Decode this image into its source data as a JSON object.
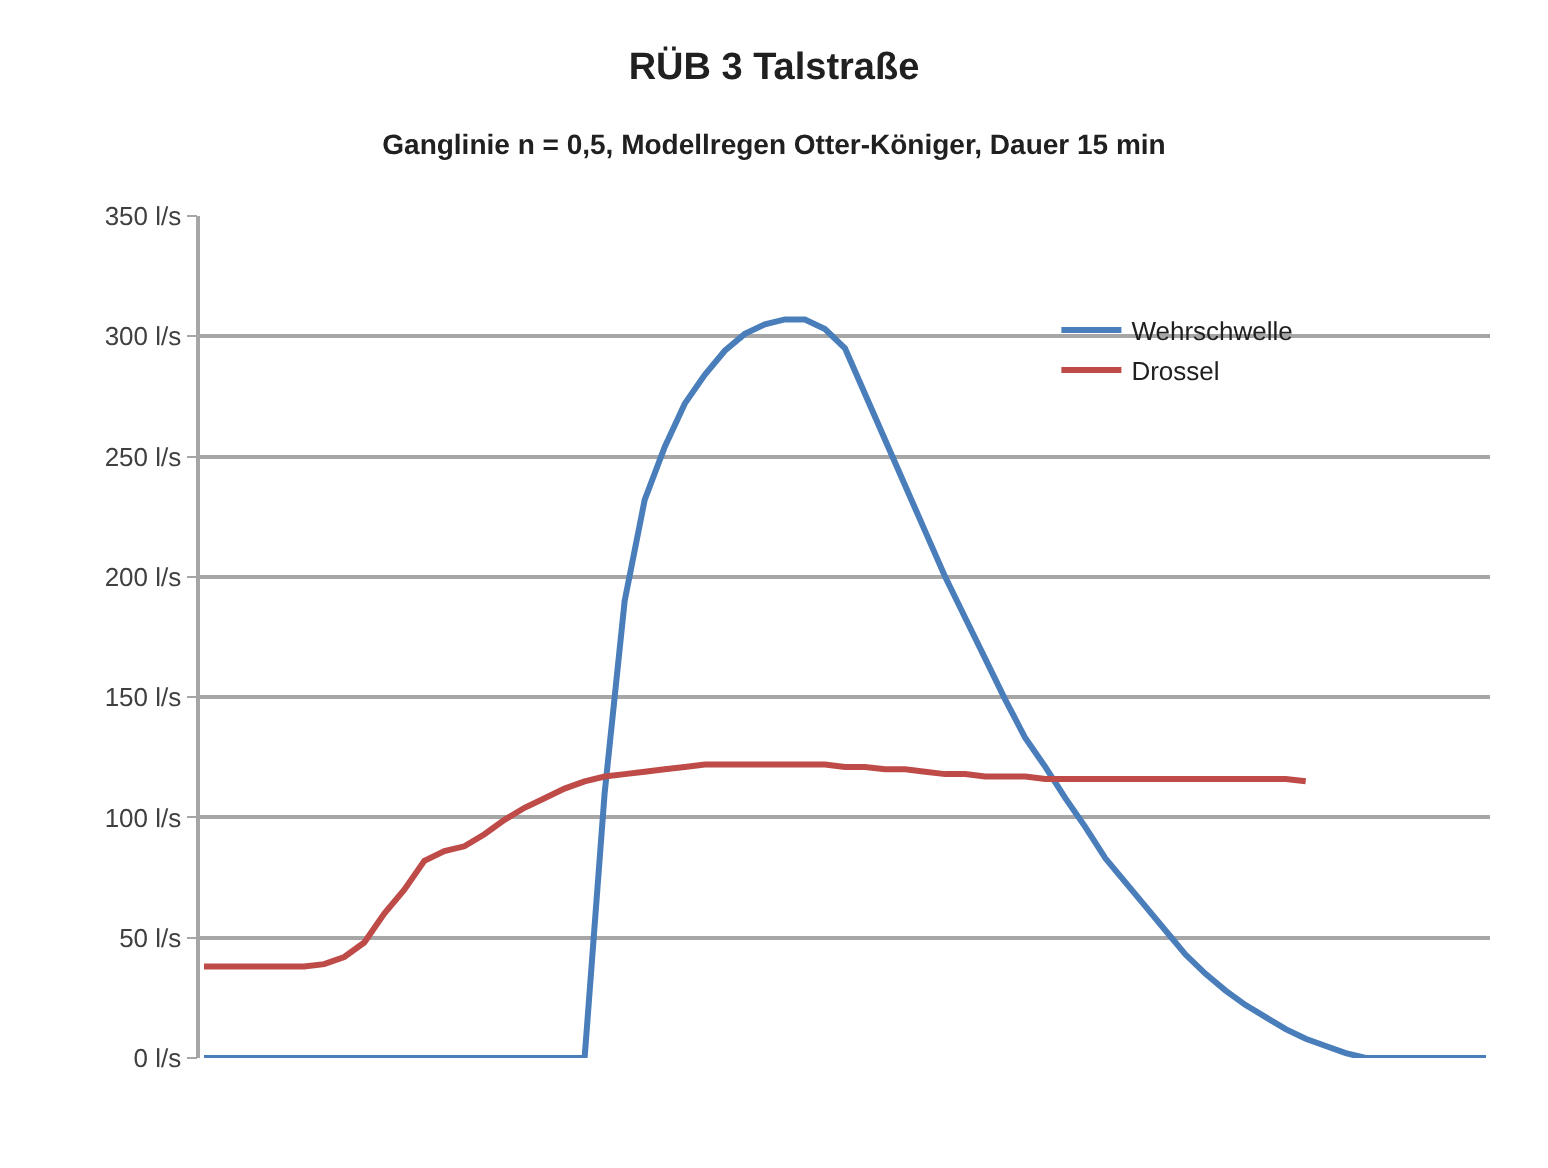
{
  "chart_data": {
    "type": "line",
    "title": "RÜB 3 Talstraße",
    "subtitle": "Ganglinie n = 0,5, Modellregen Otter-Königer, Dauer 15 min",
    "categories": [
      null,
      null,
      null,
      null,
      null,
      null,
      null,
      null,
      null,
      null,
      null,
      null,
      null,
      null,
      null,
      null,
      null,
      null,
      null,
      null,
      null,
      null,
      null,
      null,
      null,
      null,
      null,
      null,
      null,
      null,
      null,
      null,
      null,
      null,
      null,
      null,
      null,
      null,
      null,
      null,
      null,
      null,
      null,
      null,
      null,
      null,
      null,
      null,
      null,
      null,
      null,
      null,
      null,
      null,
      null,
      null,
      null,
      null,
      null,
      null,
      null,
      null,
      null,
      null,
      null
    ],
    "series": [
      {
        "name": "Wehrschwelle",
        "color": "#4a7ebb",
        "values": [
          0,
          0,
          0,
          0,
          0,
          0,
          0,
          0,
          0,
          0,
          0,
          0,
          0,
          0,
          0,
          0,
          0,
          0,
          0,
          0,
          110,
          190,
          232,
          254,
          272,
          284,
          294,
          301,
          305,
          307,
          307,
          303,
          295,
          276,
          257,
          238,
          219,
          200,
          183,
          166,
          149,
          133,
          121,
          108,
          96,
          83,
          73,
          63,
          53,
          43,
          35,
          28,
          22,
          17,
          12,
          8,
          5,
          2,
          0,
          0,
          0,
          0,
          0,
          0,
          0
        ]
      },
      {
        "name": "Drossel",
        "color": "#be4b48",
        "values": [
          38,
          38,
          38,
          38,
          38,
          38,
          39,
          42,
          48,
          60,
          70,
          82,
          86,
          88,
          93,
          99,
          104,
          108,
          112,
          115,
          117,
          118,
          119,
          120,
          121,
          122,
          122,
          122,
          122,
          122,
          122,
          122,
          121,
          121,
          120,
          120,
          119,
          118,
          118,
          117,
          117,
          117,
          116,
          116,
          116,
          116,
          116,
          116,
          116,
          116,
          116,
          116,
          116,
          116,
          116,
          115,
          null,
          null,
          null,
          null,
          null,
          null,
          null,
          null,
          null
        ]
      }
    ],
    "ylim": [
      0,
      350
    ],
    "yticks": [
      {
        "value": 0,
        "label": "0 l/s"
      },
      {
        "value": 50,
        "label": "50 l/s"
      },
      {
        "value": 100,
        "label": "100 l/s"
      },
      {
        "value": 150,
        "label": "150 l/s"
      },
      {
        "value": 200,
        "label": "200 l/s"
      },
      {
        "value": 250,
        "label": "250 l/s"
      },
      {
        "value": 300,
        "label": "300 l/s"
      },
      {
        "value": 350,
        "label": "350 l/s"
      }
    ],
    "grid": "y",
    "legend": "top right",
    "marker": "none",
    "line_style": "solid"
  }
}
